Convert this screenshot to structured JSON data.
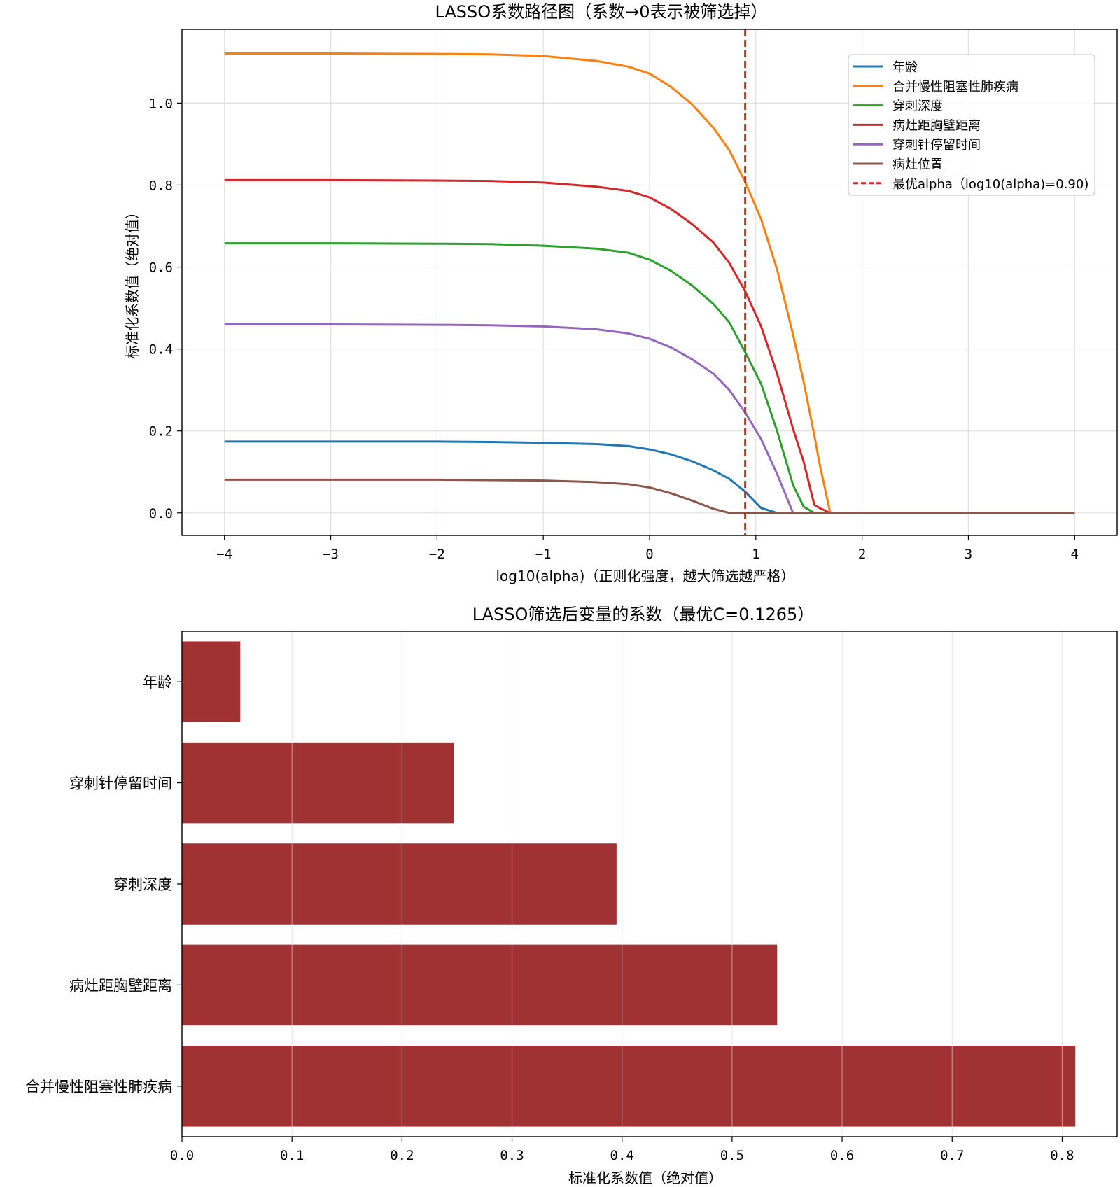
{
  "chart_data": [
    {
      "type": "line",
      "title": "LASSO系数路径图（系数→0表示被筛选掉）",
      "xlabel": "log10(alpha)（正则化强度，越大筛选越严格）",
      "ylabel": "标准化系数值（绝对值）",
      "xlim": [
        -4.4,
        4.4
      ],
      "ylim": [
        -0.055,
        1.18
      ],
      "xticks": [
        -4,
        -3,
        -2,
        -1,
        0,
        1,
        2,
        3,
        4
      ],
      "xtick_labels": [
        "−4",
        "−3",
        "−2",
        "−1",
        "0",
        "1",
        "2",
        "3",
        "4"
      ],
      "yticks": [
        0.0,
        0.2,
        0.4,
        0.6,
        0.8,
        1.0
      ],
      "ytick_labels": [
        "0.0",
        "0.2",
        "0.4",
        "0.6",
        "0.8",
        "1.0"
      ],
      "grid": true,
      "legend_position": "top-right",
      "x": [
        -4,
        -3,
        -2,
        -1.5,
        -1,
        -0.5,
        -0.2,
        0,
        0.2,
        0.4,
        0.6,
        0.75,
        0.9,
        1.05,
        1.2,
        1.35,
        1.45,
        1.55,
        1.6,
        1.7,
        2,
        3,
        4
      ],
      "series": [
        {
          "name": "年龄",
          "color": "#1f77b4",
          "values": [
            0.174,
            0.174,
            0.174,
            0.173,
            0.171,
            0.168,
            0.163,
            0.155,
            0.143,
            0.126,
            0.104,
            0.083,
            0.052,
            0.012,
            0.0,
            0.0,
            0.0,
            0.0,
            0.0,
            0.0,
            0.0,
            0.0,
            0.0
          ]
        },
        {
          "name": "合并慢性阻塞性肺疾病",
          "color": "#ff7f0e",
          "values": [
            1.121,
            1.121,
            1.12,
            1.119,
            1.115,
            1.103,
            1.089,
            1.072,
            1.04,
            0.997,
            0.94,
            0.885,
            0.808,
            0.717,
            0.594,
            0.435,
            0.32,
            0.19,
            0.12,
            0.0,
            0.0,
            0.0,
            0.0
          ]
        },
        {
          "name": "穿刺深度",
          "color": "#2ca02c",
          "values": [
            0.658,
            0.658,
            0.657,
            0.656,
            0.652,
            0.645,
            0.635,
            0.618,
            0.591,
            0.555,
            0.51,
            0.465,
            0.392,
            0.315,
            0.2,
            0.068,
            0.015,
            0.0,
            0.0,
            0.0,
            0.0,
            0.0,
            0.0
          ]
        },
        {
          "name": "病灶距胸壁距离",
          "color": "#d62728",
          "values": [
            0.812,
            0.812,
            0.811,
            0.81,
            0.806,
            0.796,
            0.786,
            0.77,
            0.742,
            0.705,
            0.66,
            0.61,
            0.541,
            0.455,
            0.34,
            0.205,
            0.125,
            0.02,
            0.012,
            0.0,
            0.0,
            0.0,
            0.0
          ]
        },
        {
          "name": "穿刺针停留时间",
          "color": "#9467bd",
          "values": [
            0.46,
            0.46,
            0.459,
            0.458,
            0.455,
            0.448,
            0.438,
            0.425,
            0.404,
            0.375,
            0.34,
            0.3,
            0.245,
            0.18,
            0.095,
            0.0,
            0.0,
            0.0,
            0.0,
            0.0,
            0.0,
            0.0,
            0.0
          ]
        },
        {
          "name": "病灶位置",
          "color": "#8c564b",
          "values": [
            0.081,
            0.081,
            0.081,
            0.08,
            0.079,
            0.075,
            0.07,
            0.062,
            0.048,
            0.03,
            0.01,
            0.0,
            0.0,
            0.0,
            0.0,
            0.0,
            0.0,
            0.0,
            0.0,
            0.0,
            0.0,
            0.0,
            0.0
          ]
        }
      ],
      "vline": {
        "x": 0.9,
        "label": "最优alpha（log10(alpha)=0.90)",
        "color": "#d62728"
      }
    },
    {
      "type": "bar",
      "orientation": "horizontal",
      "title": "LASSO筛选后变量的系数（最优C=0.1265）",
      "xlabel": "标准化系数值（绝对值）",
      "ylabel": "",
      "xlim": [
        0,
        0.85
      ],
      "xticks": [
        0.0,
        0.1,
        0.2,
        0.3,
        0.4,
        0.5,
        0.6,
        0.7,
        0.8
      ],
      "xtick_labels": [
        "0.0",
        "0.1",
        "0.2",
        "0.3",
        "0.4",
        "0.5",
        "0.6",
        "0.7",
        "0.8"
      ],
      "grid": true,
      "color": "#a03234",
      "categories": [
        "年龄",
        "穿刺针停留时间",
        "穿刺深度",
        "病灶距胸壁距离",
        "合并慢性阻塞性肺疾病"
      ],
      "values": [
        0.053,
        0.247,
        0.395,
        0.541,
        0.812
      ]
    }
  ]
}
